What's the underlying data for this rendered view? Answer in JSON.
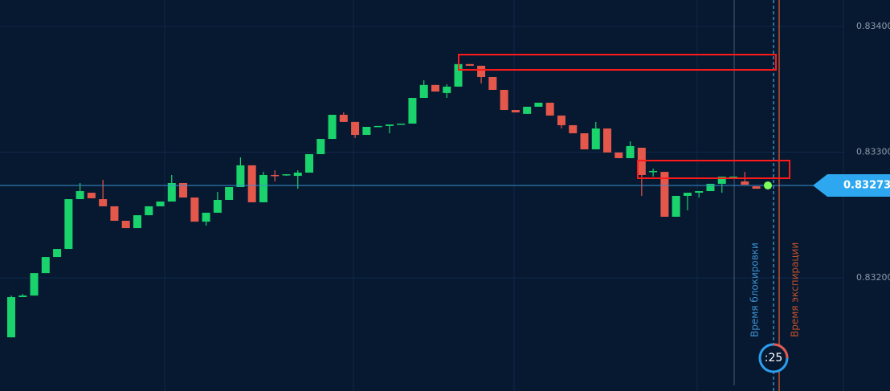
{
  "chart_data": {
    "type": "candlestick",
    "open": [
      0.831527,
      0.831847,
      0.831859,
      0.832038,
      0.832166,
      0.83223,
      0.832626,
      0.832677,
      0.832626,
      0.832569,
      0.832454,
      0.832396,
      0.832498,
      0.832569,
      0.832607,
      0.832754,
      0.832639,
      0.832447,
      0.832518,
      0.83262,
      0.832722,
      0.832895,
      0.832601,
      0.832818,
      0.832818,
      0.832811,
      0.832837,
      0.832984,
      0.833105,
      0.833297,
      0.83324,
      0.833137,
      0.833201,
      0.833208,
      0.83322,
      0.833227,
      0.833431,
      0.833534,
      0.83347,
      0.833521,
      0.8337,
      0.833687,
      0.833597,
      0.833495,
      0.833335,
      0.833304,
      0.833361,
      0.833393,
      0.833291,
      0.833214,
      0.83315,
      0.833022,
      0.833188,
      0.832997,
      0.832952,
      0.833035,
      0.832843,
      0.832843,
      0.832486,
      0.832652,
      0.832677,
      0.83269,
      0.832748,
      0.832799,
      0.832767,
      0.832728
    ],
    "high": [
      0.831859,
      0.831872,
      0.832038,
      0.832166,
      0.83223,
      0.832626,
      0.832754,
      0.832677,
      0.83278,
      0.832569,
      0.832454,
      0.832498,
      0.832569,
      0.832607,
      0.832818,
      0.832754,
      0.832639,
      0.832518,
      0.832684,
      0.832722,
      0.832958,
      0.832895,
      0.832843,
      0.832856,
      0.832824,
      0.832856,
      0.832984,
      0.833105,
      0.833297,
      0.833316,
      0.83324,
      0.833201,
      0.833208,
      0.83322,
      0.833227,
      0.833431,
      0.833572,
      0.833534,
      0.83354,
      0.8337,
      0.8337,
      0.833687,
      0.833597,
      0.833495,
      0.833335,
      0.833361,
      0.833393,
      0.833393,
      0.833291,
      0.833214,
      0.83315,
      0.83324,
      0.833188,
      0.832997,
      0.833086,
      0.833035,
      0.832869,
      0.832843,
      0.832652,
      0.832677,
      0.83269,
      0.832748,
      0.832805,
      0.832805,
      0.832843,
      0.832728
    ],
    "low": [
      0.831527,
      0.831847,
      0.831859,
      0.832038,
      0.832166,
      0.83223,
      0.832626,
      0.832633,
      0.832569,
      0.832454,
      0.832396,
      0.832396,
      0.832498,
      0.832569,
      0.832607,
      0.832639,
      0.832447,
      0.832415,
      0.832518,
      0.83262,
      0.832722,
      0.832601,
      0.832601,
      0.832767,
      0.832811,
      0.832709,
      0.832837,
      0.832984,
      0.833105,
      0.83324,
      0.833112,
      0.833137,
      0.833201,
      0.83315,
      0.83322,
      0.833227,
      0.833431,
      0.833482,
      0.833431,
      0.833521,
      0.833687,
      0.833546,
      0.833495,
      0.833335,
      0.833316,
      0.833304,
      0.833361,
      0.833291,
      0.833188,
      0.83315,
      0.833022,
      0.833022,
      0.832997,
      0.832952,
      0.832952,
      0.832652,
      0.832805,
      0.832486,
      0.832486,
      0.832537,
      0.832639,
      0.83269,
      0.832677,
      0.832799,
      0.832741,
      0.832709
    ],
    "close": [
      0.831847,
      0.831859,
      0.832038,
      0.832166,
      0.83223,
      0.832626,
      0.83269,
      0.832633,
      0.832569,
      0.832454,
      0.832396,
      0.832498,
      0.832569,
      0.832607,
      0.832754,
      0.832639,
      0.832447,
      0.832518,
      0.83262,
      0.832722,
      0.832895,
      0.832601,
      0.832818,
      0.832811,
      0.832824,
      0.832837,
      0.832984,
      0.833105,
      0.833297,
      0.83324,
      0.833137,
      0.833201,
      0.833208,
      0.83322,
      0.833227,
      0.833431,
      0.833534,
      0.833482,
      0.833521,
      0.8337,
      0.833687,
      0.833597,
      0.833495,
      0.833335,
      0.833316,
      0.833361,
      0.833393,
      0.833291,
      0.833214,
      0.83315,
      0.833022,
      0.833188,
      0.832997,
      0.832952,
      0.833048,
      0.832818,
      0.83285,
      0.832486,
      0.832652,
      0.832677,
      0.83269,
      0.832748,
      0.832805,
      0.832805,
      0.832741,
      0.832709
    ],
    "up_color": "#1ad36c",
    "down_color": "#e4574b",
    "ylim": [
      0.8311,
      0.83421
    ],
    "yticks": [
      {
        "value": 0.832,
        "label": "0.83200"
      },
      {
        "value": 0.833,
        "label": "0.83300"
      },
      {
        "value": 0.834,
        "label": "0.83400"
      }
    ],
    "grid": true,
    "current_price": 0.832735,
    "lock_label": "Время блокировки",
    "expiry_label": "Время экспирации",
    "timer": ":25"
  }
}
